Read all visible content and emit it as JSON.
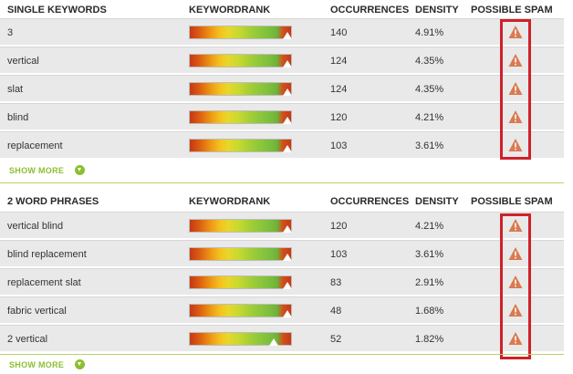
{
  "columns": {
    "keywordrank": "KEYWORDRANK",
    "occurrences": "OCCURRENCES",
    "density": "DENSITY",
    "possible_spam": "POSSIBLE SPAM"
  },
  "sections": [
    {
      "title": "SINGLE KEYWORDS",
      "show_more": "SHOW MORE",
      "rows": [
        {
          "keyword": "3",
          "occurrences": "140",
          "density": "4.91%",
          "spam_icon": "warning-icon"
        },
        {
          "keyword": "vertical",
          "occurrences": "124",
          "density": "4.35%",
          "spam_icon": "warning-icon"
        },
        {
          "keyword": "slat",
          "occurrences": "124",
          "density": "4.35%",
          "spam_icon": "warning-icon"
        },
        {
          "keyword": "blind",
          "occurrences": "120",
          "density": "4.21%",
          "spam_icon": "warning-icon"
        },
        {
          "keyword": "replacement",
          "occurrences": "103",
          "density": "3.61%",
          "spam_icon": "warning-icon"
        }
      ]
    },
    {
      "title": "2 WORD PHRASES",
      "show_more": "SHOW MORE",
      "rows": [
        {
          "keyword": "vertical blind",
          "occurrences": "120",
          "density": "4.21%",
          "spam_icon": "warning-icon"
        },
        {
          "keyword": "blind replacement",
          "occurrences": "103",
          "density": "3.61%",
          "spam_icon": "warning-icon"
        },
        {
          "keyword": "replacement slat",
          "occurrences": "83",
          "density": "2.91%",
          "spam_icon": "warning-icon"
        },
        {
          "keyword": "fabric vertical",
          "occurrences": "48",
          "density": "1.68%",
          "spam_icon": "warning-icon"
        },
        {
          "keyword": "2 vertical",
          "occurrences": "52",
          "density": "1.82%",
          "spam_icon": "warning-icon"
        }
      ]
    }
  ],
  "colors": {
    "spam_highlight": "#d0202a",
    "show_more_green": "#8cbf2f",
    "warning_icon": "#d97a50"
  }
}
